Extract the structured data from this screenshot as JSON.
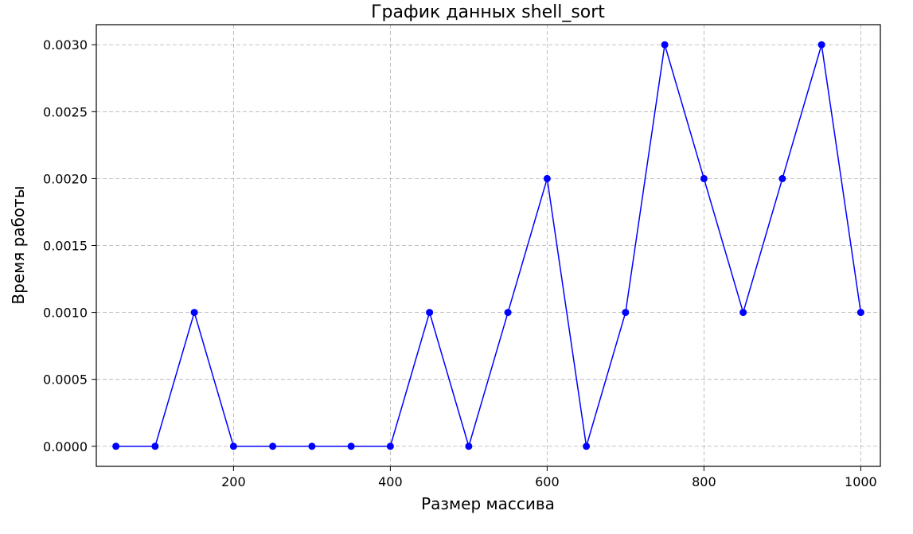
{
  "chart_data": {
    "type": "line",
    "title": "График данных shell_sort",
    "xlabel": "Размер массива",
    "ylabel": "Время работы",
    "xlim": [
      25,
      1025
    ],
    "ylim": [
      -0.00015,
      0.00315
    ],
    "grid": true,
    "x_ticks": [
      {
        "value": 200,
        "label": "200"
      },
      {
        "value": 400,
        "label": "400"
      },
      {
        "value": 600,
        "label": "600"
      },
      {
        "value": 800,
        "label": "800"
      },
      {
        "value": 1000,
        "label": "1000"
      }
    ],
    "y_ticks": [
      {
        "value": 0.0,
        "label": "0.0000"
      },
      {
        "value": 0.0005,
        "label": "0.0005"
      },
      {
        "value": 0.001,
        "label": "0.0010"
      },
      {
        "value": 0.0015,
        "label": "0.0015"
      },
      {
        "value": 0.002,
        "label": "0.0020"
      },
      {
        "value": 0.0025,
        "label": "0.0025"
      },
      {
        "value": 0.003,
        "label": "0.0030"
      }
    ],
    "series": [
      {
        "color": "#0000ff",
        "marker": "circle",
        "x": [
          50,
          100,
          150,
          200,
          250,
          300,
          350,
          400,
          450,
          500,
          550,
          600,
          650,
          700,
          750,
          800,
          850,
          900,
          950,
          1000
        ],
        "y": [
          0.0,
          0.0,
          0.001,
          0.0,
          0.0,
          0.0,
          0.0,
          0.0,
          0.001,
          0.0,
          0.001,
          0.002,
          0.0,
          0.001,
          0.003,
          0.002,
          0.001,
          0.002,
          0.003,
          0.001
        ]
      }
    ]
  }
}
